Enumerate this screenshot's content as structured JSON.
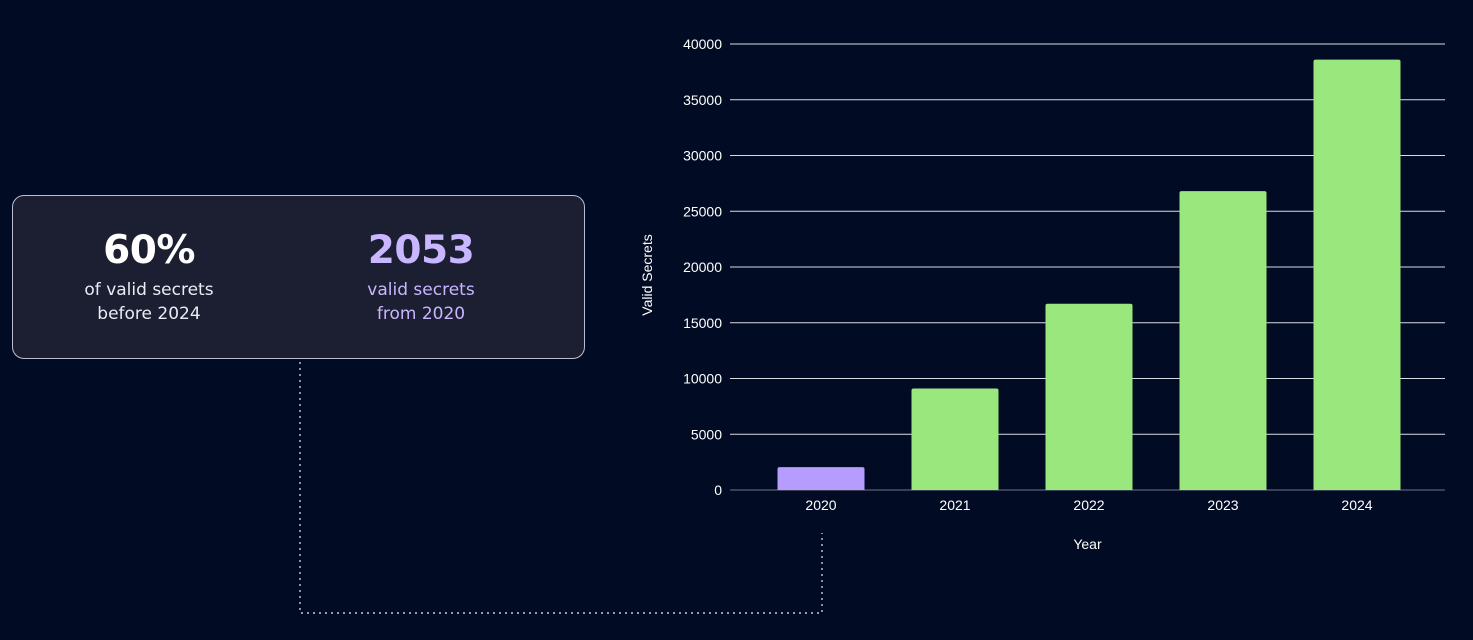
{
  "stats": [
    {
      "value": "60%",
      "caption_line1": "of valid secrets",
      "caption_line2": "before 2024",
      "color": "#ffffff"
    },
    {
      "value": "2053",
      "caption_line1": "valid secrets",
      "caption_line2": "from 2020",
      "color": "#c8b6ff"
    }
  ],
  "colors": {
    "background": "#010b24",
    "highlight_bar": "#b79cff",
    "bar": "#9ae77d",
    "grid": "#d9dbe3",
    "text": "#ffffff"
  },
  "chart_data": {
    "type": "bar",
    "categories": [
      "2020",
      "2021",
      "2022",
      "2023",
      "2024"
    ],
    "values": [
      2053,
      9100,
      16700,
      26800,
      38600
    ],
    "highlight_index": 0,
    "xlabel": "Year",
    "ylabel": "Valid Secrets",
    "ylim": [
      0,
      40000
    ],
    "yticks": [
      0,
      5000,
      10000,
      15000,
      20000,
      25000,
      30000,
      35000,
      40000
    ],
    "grid": true,
    "legend": "none"
  }
}
